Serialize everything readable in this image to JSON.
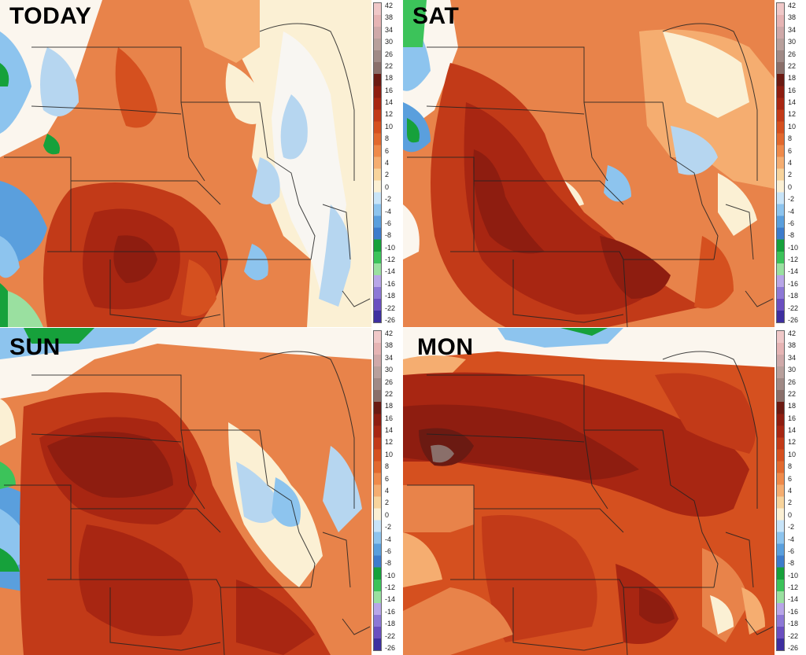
{
  "panels": [
    {
      "label": "TODAY",
      "pattern": "today"
    },
    {
      "label": "SAT",
      "pattern": "sat"
    },
    {
      "label": "SUN",
      "pattern": "sun"
    },
    {
      "label": "MON",
      "pattern": "mon"
    }
  ],
  "colorbar": {
    "ticks": [
      "42",
      "38",
      "34",
      "30",
      "26",
      "22",
      "18",
      "16",
      "14",
      "12",
      "10",
      "8",
      "6",
      "4",
      "2",
      "0",
      "-2",
      "-4",
      "-6",
      "-8",
      "-10",
      "-12",
      "-14",
      "-16",
      "-18",
      "-22",
      "-26"
    ],
    "colors": [
      "#f0c8c8",
      "#e6b4b4",
      "#cfa9a9",
      "#b8a09c",
      "#a08a86",
      "#8a6f6a",
      "#6b1a12",
      "#8e1d10",
      "#a82612",
      "#c23a18",
      "#d5501f",
      "#e2692e",
      "#ef8a4a",
      "#f5ad70",
      "#f8d49c",
      "#fbf0d4",
      "#c8e4f8",
      "#8dc4ee",
      "#5a9fdd",
      "#3d7ccc",
      "#16a13b",
      "#3cc35a",
      "#9ae0a0",
      "#b8a6e8",
      "#8d78d6",
      "#6a4fc0",
      "#3e2fa0"
    ]
  },
  "palette": {
    "dark_red": "#8e1d10",
    "red": "#c23a18",
    "orange": "#e2692e",
    "light_orange": "#f5ad70",
    "yellow": "#f8d49c",
    "white": "#fbf6ee",
    "light_blue": "#b6d6f0",
    "blue": "#5a9fdd",
    "green": "#16a13b",
    "brown": "#8a6f6a"
  }
}
